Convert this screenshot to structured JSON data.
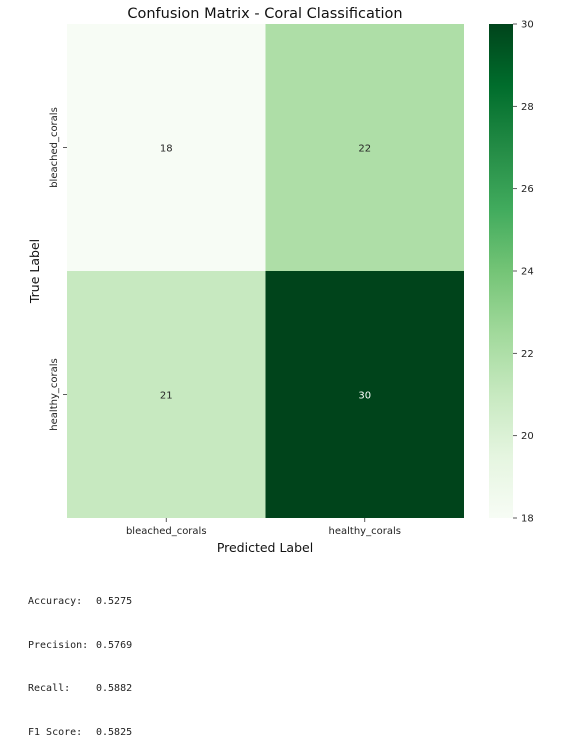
{
  "chart_data": {
    "type": "heatmap",
    "title": "Confusion Matrix - Coral Classification",
    "xlabel": "Predicted Label",
    "ylabel": "True Label",
    "x_categories": [
      "bleached_corals",
      "healthy_corals"
    ],
    "y_categories": [
      "bleached_corals",
      "healthy_corals"
    ],
    "values": [
      [
        18,
        22
      ],
      [
        21,
        30
      ]
    ],
    "colormap": "Greens",
    "colorbar": {
      "range": [
        18,
        30
      ],
      "ticks": [
        18,
        20,
        22,
        24,
        26,
        28,
        30
      ]
    },
    "colors": {
      "low": "#f7fcf5",
      "high": "#00441b"
    }
  },
  "metrics": [
    {
      "label": "Accuracy:",
      "value": "0.5275"
    },
    {
      "label": "Precision:",
      "value": "0.5769"
    },
    {
      "label": "Recall:",
      "value": "0.5882"
    },
    {
      "label": "F1 Score:",
      "value": "0.5825"
    }
  ]
}
